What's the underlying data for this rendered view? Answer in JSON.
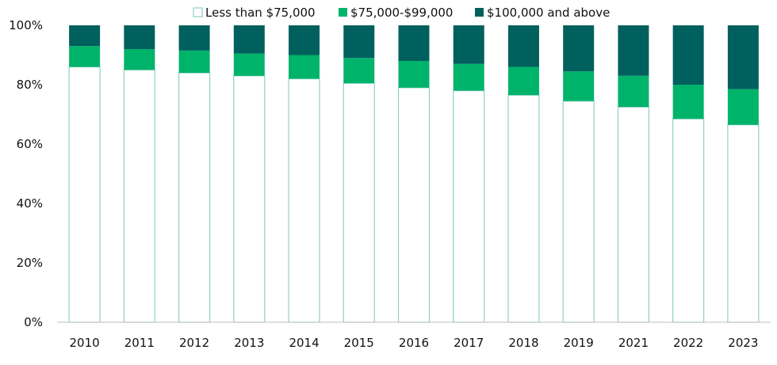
{
  "chart_data": {
    "type": "bar",
    "stacked": true,
    "categories": [
      "2010",
      "2011",
      "2012",
      "2013",
      "2014",
      "2015",
      "2016",
      "2017",
      "2018",
      "2019",
      "2021",
      "2022",
      "2023"
    ],
    "series": [
      {
        "name": "Less than $75,000",
        "color": "#ffffff",
        "outline": "#8ecfc8",
        "values": [
          86,
          85,
          84,
          83,
          82,
          80.5,
          79,
          78,
          76.5,
          74.5,
          72.5,
          68.5,
          66.5
        ]
      },
      {
        "name": "$75,000-$99,000",
        "color": "#00b36b",
        "values": [
          7,
          7,
          7.5,
          7.5,
          8,
          8.5,
          9,
          9,
          9.5,
          10,
          10.5,
          11.5,
          12
        ]
      },
      {
        "name": "$100,000 and above",
        "color": "#00605e",
        "values": [
          7,
          8,
          8.5,
          9.5,
          10,
          11,
          12,
          13,
          14,
          15.5,
          17,
          20,
          21.5
        ]
      }
    ],
    "ylim": [
      0,
      100
    ],
    "yticks": [
      "0%",
      "20%",
      "40%",
      "60%",
      "80%",
      "100%"
    ],
    "xlabel": "",
    "ylabel": "",
    "legend": "top-center",
    "grid": false
  }
}
